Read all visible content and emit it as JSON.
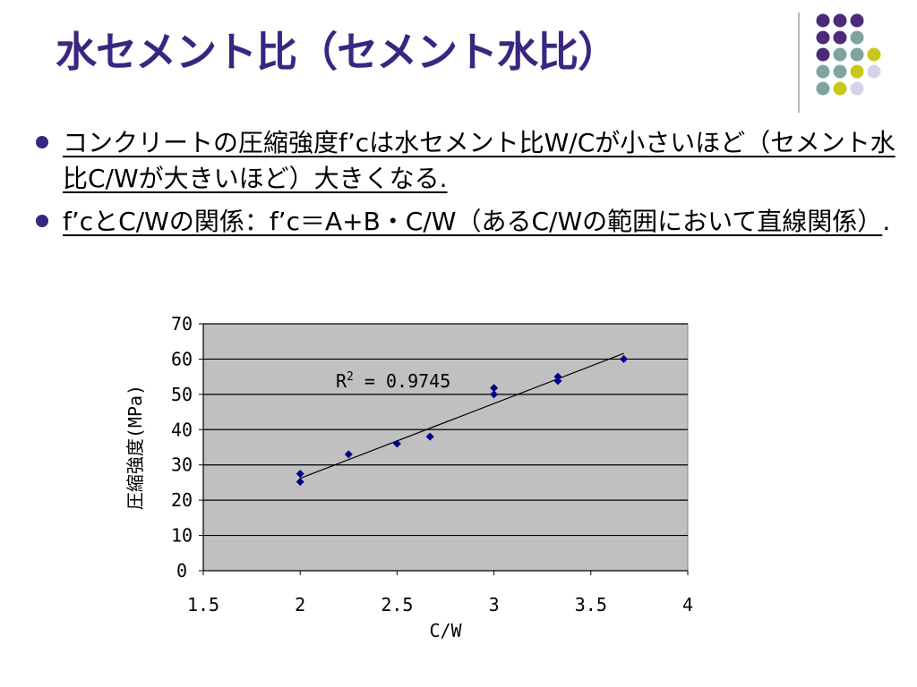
{
  "slide": {
    "title": "水セメント比（セメント水比）",
    "bullets": [
      "コンクリートの圧縮強度f’cは水セメント比W/Cが小さいほど（セメント水比C/Wが大きいほど）大きくなる.",
      "f’cとC/Wの関係：f’c＝A+B・C/W（あるC/Wの範囲において直線関係）"
    ],
    "bullet2_suffix": ".",
    "colors": {
      "title": "#3a2680",
      "bullet": "#3a2680",
      "dot_purple": "#4b2a7a",
      "dot_teal": "#7fa3a3",
      "dot_yellow": "#c8c81a",
      "dot_light": "#d4d4e8"
    }
  },
  "chart_data": {
    "type": "scatter",
    "xlabel": "C/W",
    "ylabel": "圧縮強度(MPa)",
    "xlim": [
      1.5,
      4
    ],
    "ylim": [
      0,
      70
    ],
    "xticks": [
      "1.5",
      "2",
      "2.5",
      "3",
      "3.5",
      "4"
    ],
    "yticks": [
      "0",
      "10",
      "20",
      "30",
      "40",
      "50",
      "60",
      "70"
    ],
    "grid": true,
    "plot_background": "#c0c0c0",
    "marker_color": "#00008b",
    "points": [
      {
        "x": 2.0,
        "y": 25.2
      },
      {
        "x": 2.0,
        "y": 27.5
      },
      {
        "x": 2.25,
        "y": 33.0
      },
      {
        "x": 2.5,
        "y": 36.0
      },
      {
        "x": 2.67,
        "y": 38.0
      },
      {
        "x": 3.0,
        "y": 50.0
      },
      {
        "x": 3.0,
        "y": 51.8
      },
      {
        "x": 3.33,
        "y": 53.8
      },
      {
        "x": 3.33,
        "y": 55.0
      },
      {
        "x": 3.67,
        "y": 60.0
      }
    ],
    "trendline": {
      "x": [
        2.0,
        3.67
      ],
      "y": [
        26.2,
        61.6
      ]
    },
    "annotation": {
      "label": "R",
      "sup": "2",
      "text": " = 0.9745"
    }
  }
}
